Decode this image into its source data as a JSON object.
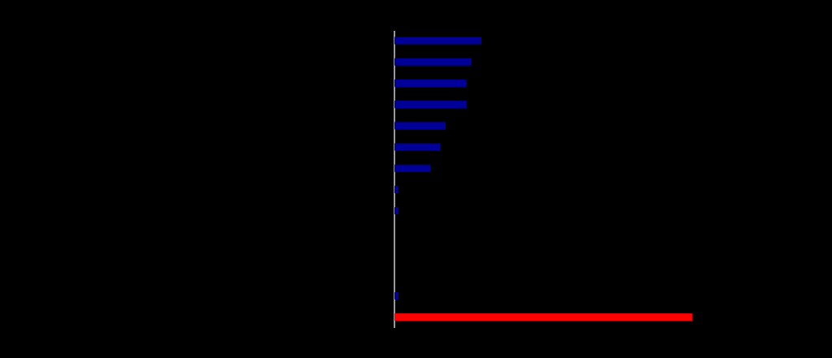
{
  "chart_data": {
    "type": "barh",
    "categories": [
      null,
      null,
      null,
      null,
      null,
      null,
      null,
      null,
      null,
      null,
      null,
      null,
      null,
      null
    ],
    "values": [
      107,
      94,
      88,
      88,
      63,
      56,
      44,
      5,
      5,
      0,
      0,
      0,
      5,
      366
    ],
    "colors": [
      "#000099",
      "#000099",
      "#000099",
      "#000099",
      "#000099",
      "#000099",
      "#000099",
      "#000099",
      "#000099",
      "#000099",
      "#000099",
      "#000099",
      "#000099",
      "#ff0000"
    ]
  }
}
